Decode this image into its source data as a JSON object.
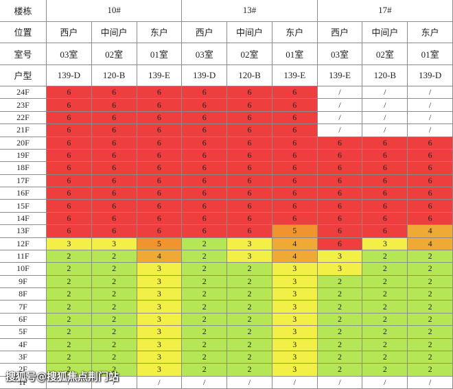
{
  "header": {
    "building_label": "楼栋",
    "buildings": [
      "10#",
      "13#",
      "17#"
    ],
    "position_label": "位置",
    "positions": [
      "西户",
      "中间户",
      "东户",
      "西户",
      "中间户",
      "东户",
      "西户",
      "中间户",
      "东户"
    ],
    "room_label": "室号",
    "rooms": [
      "03室",
      "02室",
      "01室",
      "03室",
      "02室",
      "01室",
      "03室",
      "02室",
      "01室"
    ],
    "type_label": "户型",
    "types": [
      "139-D",
      "120-B",
      "139-E",
      "139-D",
      "120-B",
      "139-E",
      "139-E",
      "120-B",
      "139-D"
    ]
  },
  "floors": [
    {
      "floor": "24F",
      "values": [
        6,
        6,
        6,
        6,
        6,
        6,
        "/",
        "/",
        "/"
      ]
    },
    {
      "floor": "23F",
      "values": [
        6,
        6,
        6,
        6,
        6,
        6,
        "/",
        "/",
        "/"
      ]
    },
    {
      "floor": "22F",
      "values": [
        6,
        6,
        6,
        6,
        6,
        6,
        "/",
        "/",
        "/"
      ]
    },
    {
      "floor": "21F",
      "values": [
        6,
        6,
        6,
        6,
        6,
        6,
        "/",
        "/",
        "/"
      ]
    },
    {
      "floor": "20F",
      "values": [
        6,
        6,
        6,
        6,
        6,
        6,
        6,
        6,
        6
      ]
    },
    {
      "floor": "19F",
      "values": [
        6,
        6,
        6,
        6,
        6,
        6,
        6,
        6,
        6
      ]
    },
    {
      "floor": "18F",
      "values": [
        6,
        6,
        6,
        6,
        6,
        6,
        6,
        6,
        6
      ]
    },
    {
      "floor": "17F",
      "values": [
        6,
        6,
        6,
        6,
        6,
        6,
        6,
        6,
        6
      ]
    },
    {
      "floor": "16F",
      "values": [
        6,
        6,
        6,
        6,
        6,
        6,
        6,
        6,
        6
      ]
    },
    {
      "floor": "15F",
      "values": [
        6,
        6,
        6,
        6,
        6,
        6,
        6,
        6,
        6
      ]
    },
    {
      "floor": "14F",
      "values": [
        6,
        6,
        6,
        6,
        6,
        6,
        6,
        6,
        6
      ]
    },
    {
      "floor": "13F",
      "values": [
        6,
        6,
        6,
        6,
        6,
        5,
        6,
        6,
        4
      ]
    },
    {
      "floor": "12F",
      "values": [
        3,
        3,
        5,
        2,
        3,
        4,
        6,
        3,
        4
      ]
    },
    {
      "floor": "11F",
      "values": [
        2,
        2,
        4,
        2,
        3,
        4,
        3,
        2,
        2
      ]
    },
    {
      "floor": "10F",
      "values": [
        2,
        2,
        3,
        2,
        2,
        3,
        3,
        2,
        2
      ]
    },
    {
      "floor": "9F",
      "values": [
        2,
        2,
        3,
        2,
        2,
        3,
        2,
        2,
        2
      ]
    },
    {
      "floor": "8F",
      "values": [
        2,
        2,
        3,
        2,
        2,
        3,
        2,
        2,
        2
      ]
    },
    {
      "floor": "7F",
      "values": [
        2,
        2,
        3,
        2,
        2,
        3,
        2,
        2,
        2
      ]
    },
    {
      "floor": "6F",
      "values": [
        2,
        2,
        3,
        2,
        2,
        3,
        2,
        2,
        2
      ]
    },
    {
      "floor": "5F",
      "values": [
        2,
        2,
        3,
        2,
        2,
        3,
        2,
        2,
        2
      ]
    },
    {
      "floor": "4F",
      "values": [
        2,
        2,
        3,
        2,
        2,
        3,
        2,
        2,
        2
      ]
    },
    {
      "floor": "3F",
      "values": [
        2,
        2,
        3,
        2,
        2,
        3,
        2,
        2,
        2
      ]
    },
    {
      "floor": "2F",
      "values": [
        2,
        2,
        3,
        2,
        2,
        3,
        2,
        2,
        2
      ]
    },
    {
      "floor": "1F",
      "values": [
        "/",
        "/",
        "/",
        "/",
        "/",
        "/",
        "/",
        "/",
        "/"
      ]
    }
  ],
  "colors": {
    "2": "#b5e655",
    "3": "#f2f046",
    "4": "#eeaa35",
    "5": "#f1932f",
    "6": "#ef3e3e"
  },
  "watermark": "搜狐号@搜狐焦点荆门站"
}
